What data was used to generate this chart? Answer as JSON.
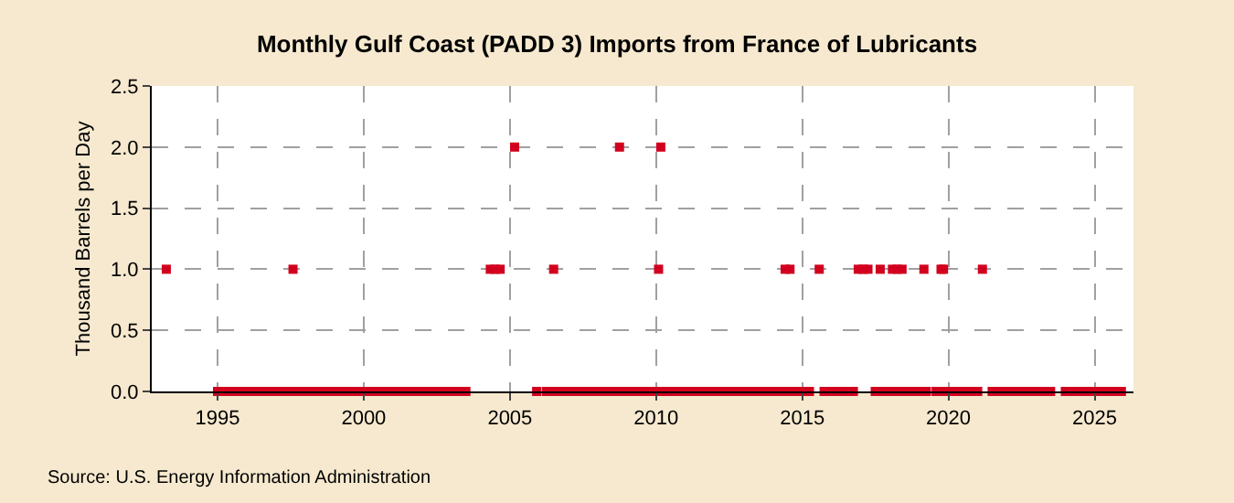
{
  "chart_data": {
    "type": "scatter",
    "title": "Monthly Gulf Coast (PADD 3) Imports from France of Lubricants",
    "ylabel": "Thousand Barrels per Day",
    "annotations": [
      "Source: U.S. Energy Information Administration"
    ],
    "marker": "square",
    "grid": true,
    "xlim": [
      "1992-10",
      "2026-05"
    ],
    "xticks": [
      {
        "value": "1995",
        "label": "1995"
      },
      {
        "value": "2000",
        "label": "2000"
      },
      {
        "value": "2005",
        "label": "2005"
      },
      {
        "value": "2010",
        "label": "2010"
      },
      {
        "value": "2015",
        "label": "2015"
      },
      {
        "value": "2020",
        "label": "2020"
      },
      {
        "value": "2025",
        "label": "2025"
      }
    ],
    "ylim": [
      0,
      2.5
    ],
    "yticks": [
      {
        "value": 0,
        "label": "0.0"
      },
      {
        "value": 0.5,
        "label": "0.5"
      },
      {
        "value": 1,
        "label": "1.0"
      },
      {
        "value": 1.5,
        "label": "1.5"
      },
      {
        "value": 2,
        "label": "2.0"
      },
      {
        "value": 2.5,
        "label": "2.5"
      }
    ],
    "series": [
      {
        "color": "#d2001e",
        "x": [
          "1993-04",
          "1995-01",
          "1995-04",
          "1995-07",
          "1995-10",
          "1996-01",
          "1996-04",
          "1996-07",
          "1996-10",
          "1997-01",
          "1997-04",
          "1997-07",
          "1997-08",
          "1997-10",
          "1998-01",
          "1998-04",
          "1998-07",
          "1998-10",
          "1999-01",
          "1999-04",
          "1999-07",
          "1999-10",
          "2000-01",
          "2000-04",
          "2000-07",
          "2000-10",
          "2001-01",
          "2001-04",
          "2001-07",
          "2001-10",
          "2002-01",
          "2002-04",
          "2002-07",
          "2002-10",
          "2003-01",
          "2003-04",
          "2003-07",
          "2004-05",
          "2004-07",
          "2004-09",
          "2005-03",
          "2005-12",
          "2006-04",
          "2006-06",
          "2006-07",
          "2006-08",
          "2006-10",
          "2007-01",
          "2007-04",
          "2007-07",
          "2007-10",
          "2008-01",
          "2008-04",
          "2008-07",
          "2008-09",
          "2008-10",
          "2008-11",
          "2009-01",
          "2009-04",
          "2009-07",
          "2009-10",
          "2010-01",
          "2010-02",
          "2010-03",
          "2010-04",
          "2010-07",
          "2010-10",
          "2011-01",
          "2011-04",
          "2011-07",
          "2011-10",
          "2012-01",
          "2012-04",
          "2012-07",
          "2012-10",
          "2013-01",
          "2013-04",
          "2013-07",
          "2013-10",
          "2014-01",
          "2014-04",
          "2014-06",
          "2014-07",
          "2014-08",
          "2014-10",
          "2015-01",
          "2015-04",
          "2015-08",
          "2015-10",
          "2016-01",
          "2016-04",
          "2016-07",
          "2016-10",
          "2016-12",
          "2017-02",
          "2017-04",
          "2017-07",
          "2017-09",
          "2017-10",
          "2018-01",
          "2018-02",
          "2018-03",
          "2018-04",
          "2018-05",
          "2018-06",
          "2018-07",
          "2018-10",
          "2019-01",
          "2019-03",
          "2019-04",
          "2019-08",
          "2019-09",
          "2019-10",
          "2019-11",
          "2019-12",
          "2020-01",
          "2020-04",
          "2020-07",
          "2020-10",
          "2021-01",
          "2021-03",
          "2021-07",
          "2021-10",
          "2022-01",
          "2022-04",
          "2022-07",
          "2022-10",
          "2023-01",
          "2023-04",
          "2023-07",
          "2024-01",
          "2024-04",
          "2024-07",
          "2024-10",
          "2025-01",
          "2025-04",
          "2025-07",
          "2025-10",
          "2025-12"
        ],
        "values": [
          1,
          0,
          0,
          0,
          0,
          0,
          0,
          0,
          0,
          0,
          0,
          0,
          1,
          0,
          0,
          0,
          0,
          0,
          0,
          0,
          0,
          0,
          0,
          0,
          0,
          0,
          0,
          0,
          0,
          0,
          0,
          0,
          0,
          0,
          0,
          0,
          0,
          1,
          1,
          1,
          2,
          0,
          0,
          0,
          1,
          0,
          0,
          0,
          0,
          0,
          0,
          0,
          0,
          0,
          0,
          2,
          0,
          0,
          0,
          0,
          0,
          0,
          1,
          2,
          0,
          0,
          0,
          0,
          0,
          0,
          0,
          0,
          0,
          0,
          0,
          0,
          0,
          0,
          0,
          0,
          0,
          1,
          0,
          1,
          0,
          0,
          0,
          1,
          0,
          0,
          0,
          0,
          0,
          1,
          1,
          1,
          0,
          1,
          0,
          0,
          1,
          0,
          1,
          0,
          1,
          0,
          0,
          0,
          1,
          0,
          0,
          0,
          1,
          1,
          0,
          0,
          0,
          0,
          0,
          0,
          1,
          0,
          0,
          0,
          0,
          0,
          0,
          0,
          0,
          0,
          0,
          0,
          0,
          0,
          0,
          0,
          0,
          0,
          0
        ]
      }
    ]
  }
}
